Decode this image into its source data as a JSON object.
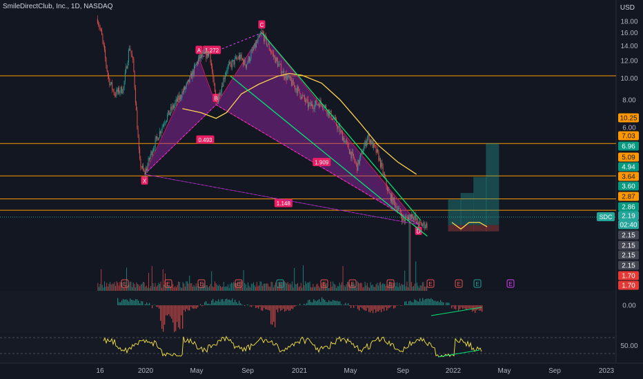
{
  "header": {
    "symbol_line": "SmileDirectClub, Inc., 1D, NASDAQ",
    "currency": "USD"
  },
  "chart_data": {
    "type": "line",
    "title": "SmileDirectClub, Inc., 1D, NASDAQ",
    "y_tick_labels": [
      "18.00",
      "16.00",
      "14.00",
      "12.00",
      "10.00",
      "8.00",
      "6.00",
      "4.00"
    ],
    "x_tick_labels": [
      "16",
      "2020",
      "May",
      "Sep",
      "2021",
      "May",
      "Sep",
      "2022",
      "May",
      "Sep",
      "2023"
    ],
    "ylim": [
      2.0,
      19.5
    ],
    "log_scale": true,
    "series_price_approx": [
      {
        "x": "2019-12-10",
        "y": 18.5
      },
      {
        "x": "2019-12-20",
        "y": 15.5
      },
      {
        "x": "2020-01-05",
        "y": 10.0
      },
      {
        "x": "2020-01-20",
        "y": 8.5
      },
      {
        "x": "2020-02-10",
        "y": 9.0
      },
      {
        "x": "2020-02-25",
        "y": 14.0
      },
      {
        "x": "2020-03-05",
        "y": 11.5
      },
      {
        "x": "2020-03-20",
        "y": 4.2
      },
      {
        "x": "2020-04-01",
        "y": 3.7
      },
      {
        "x": "2020-04-20",
        "y": 4.8
      },
      {
        "x": "2020-05-20",
        "y": 6.5
      },
      {
        "x": "2020-06-20",
        "y": 8.0
      },
      {
        "x": "2020-07-15",
        "y": 9.5
      },
      {
        "x": "2020-08-10",
        "y": 12.3
      },
      {
        "x": "2020-09-05",
        "y": 13.0
      },
      {
        "x": "2020-09-20",
        "y": 7.6
      },
      {
        "x": "2020-10-15",
        "y": 11.0
      },
      {
        "x": "2020-11-15",
        "y": 12.5
      },
      {
        "x": "2020-12-01",
        "y": 11.5
      },
      {
        "x": "2021-01-08",
        "y": 16.0
      },
      {
        "x": "2021-02-01",
        "y": 13.0
      },
      {
        "x": "2021-03-01",
        "y": 10.5
      },
      {
        "x": "2021-04-01",
        "y": 9.0
      },
      {
        "x": "2021-05-01",
        "y": 7.5
      },
      {
        "x": "2021-06-01",
        "y": 7.8
      },
      {
        "x": "2021-07-01",
        "y": 6.5
      },
      {
        "x": "2021-08-01",
        "y": 5.0
      },
      {
        "x": "2021-08-25",
        "y": 4.0
      },
      {
        "x": "2021-09-20",
        "y": 5.5
      },
      {
        "x": "2021-10-15",
        "y": 4.5
      },
      {
        "x": "2021-11-10",
        "y": 3.0
      },
      {
        "x": "2021-12-01",
        "y": 2.6
      },
      {
        "x": "2021-12-15",
        "y": 2.3
      },
      {
        "x": "2022-01-05",
        "y": 2.45
      },
      {
        "x": "2022-01-20",
        "y": 2.2
      },
      {
        "x": "2022-02-10",
        "y": 2.19
      }
    ],
    "series_ma_approx": [
      {
        "x": "2020-07-01",
        "y": 7.3
      },
      {
        "x": "2020-08-15",
        "y": 7.0
      },
      {
        "x": "2020-09-20",
        "y": 6.6
      },
      {
        "x": "2020-10-15",
        "y": 7.0
      },
      {
        "x": "2020-11-20",
        "y": 8.5
      },
      {
        "x": "2021-01-01",
        "y": 9.4
      },
      {
        "x": "2021-02-15",
        "y": 10.2
      },
      {
        "x": "2021-03-15",
        "y": 10.5
      },
      {
        "x": "2021-04-15",
        "y": 10.3
      },
      {
        "x": "2021-06-01",
        "y": 9.5
      },
      {
        "x": "2021-07-15",
        "y": 8.0
      },
      {
        "x": "2021-09-01",
        "y": 6.3
      },
      {
        "x": "2021-10-15",
        "y": 5.0
      },
      {
        "x": "2021-12-01",
        "y": 4.2
      },
      {
        "x": "2022-01-15",
        "y": 3.7
      }
    ],
    "horizontal_levels": [
      10.25,
      5.09,
      3.64,
      2.87,
      2.55
    ],
    "harmonic_pattern": {
      "points": [
        {
          "label": "X",
          "x": "2020-04-01",
          "y": 3.7
        },
        {
          "label": "A",
          "x": "2020-08-10",
          "y": 12.3
        },
        {
          "label": "B",
          "x": "2020-09-20",
          "y": 7.6
        },
        {
          "label": "C",
          "x": "2021-01-08",
          "y": 16.0
        },
        {
          "label": "D",
          "x": "2022-01-20",
          "y": 2.2
        }
      ],
      "ratios": [
        {
          "text": "1.272",
          "x": "2020-09-10",
          "y": 13.4
        },
        {
          "text": "0.493",
          "x": "2020-08-25",
          "y": 5.3
        },
        {
          "text": "1.909",
          "x": "2021-06-01",
          "y": 4.2
        },
        {
          "text": "1.148",
          "x": "2021-03-01",
          "y": 2.75
        }
      ]
    },
    "trendlines": [
      {
        "from": {
          "x": "2021-01-08",
          "y": 16.0
        },
        "to": {
          "x": "2022-01-25",
          "y": 2.3
        }
      },
      {
        "from": {
          "x": "2020-10-25",
          "y": 10.2
        },
        "to": {
          "x": "2022-02-10",
          "y": 1.95
        }
      },
      {
        "from": {
          "x": "2020-04-01",
          "y": 3.7
        },
        "to": {
          "x": "2022-01-20",
          "y": 2.2
        }
      }
    ],
    "price_labels": [
      {
        "text": "10.25",
        "bg": "#ff9800",
        "fg": "#131722"
      },
      {
        "text": "7.03",
        "bg": "#ff9800",
        "fg": "#131722"
      },
      {
        "text": "6.96",
        "bg": "#089981",
        "fg": "#ffffff"
      },
      {
        "text": "5.09",
        "bg": "#ff9800",
        "fg": "#131722"
      },
      {
        "text": "4.94",
        "bg": "#089981",
        "fg": "#ffffff"
      },
      {
        "text": "3.64",
        "bg": "#ff9800",
        "fg": "#131722"
      },
      {
        "text": "3.60",
        "bg": "#089981",
        "fg": "#ffffff"
      },
      {
        "text": "2.87",
        "bg": "#ff9800",
        "fg": "#131722"
      },
      {
        "text": "2.86",
        "bg": "#089981",
        "fg": "#ffffff"
      },
      {
        "text": "2.19",
        "bg": "#26a69a",
        "fg": "#ffffff"
      },
      {
        "text": "02:40",
        "bg": "#26a69a",
        "fg": "#ffffff"
      },
      {
        "text": "2.15",
        "bg": "#434651",
        "fg": "#ffffff"
      },
      {
        "text": "2.15",
        "bg": "#434651",
        "fg": "#ffffff"
      },
      {
        "text": "2.15",
        "bg": "#434651",
        "fg": "#ffffff"
      },
      {
        "text": "2.15",
        "bg": "#434651",
        "fg": "#ffffff"
      },
      {
        "text": "1.70",
        "bg": "#e53935",
        "fg": "#ffffff"
      },
      {
        "text": "1.70",
        "bg": "#e53935",
        "fg": "#ffffff"
      }
    ],
    "ticker_tag": "SDC",
    "earnings_markers": [
      "E",
      "E",
      "E",
      "E",
      "E",
      "E",
      "E",
      "E",
      "E",
      "E",
      "E",
      "E"
    ],
    "projected_boxes": [
      {
        "month": "2022-04",
        "bottom": 2.05,
        "top": 2.85
      },
      {
        "month": "2022-05",
        "bottom": 2.05,
        "top": 3.05
      },
      {
        "month": "2022-06",
        "bottom": 2.05,
        "top": 3.6
      },
      {
        "month": "2022-07",
        "bottom": 2.05,
        "top": 5.1
      }
    ],
    "macd": {
      "zero_label": "0.00"
    },
    "rsi": {
      "level_label": "50.00"
    },
    "colors": {
      "background": "#131722",
      "up": "#26a69a",
      "down": "#ef5350",
      "level": "#ff9800",
      "pattern_fill": "#9c27b0",
      "pattern_label": "#e91e63",
      "ma": "#ffd54f",
      "trend": "#00e676",
      "rsi": "#ffeb3b"
    }
  }
}
